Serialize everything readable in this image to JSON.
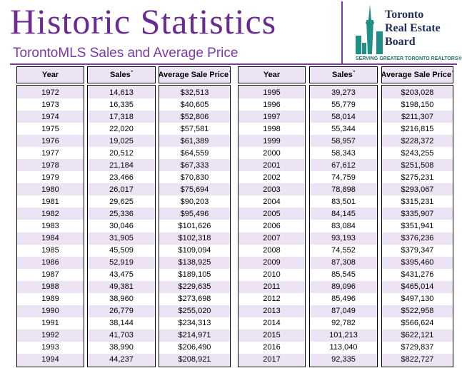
{
  "header": {
    "title": "Historic Statistics",
    "subtitle": "TorontoMLS Sales and Average Price"
  },
  "logo": {
    "lines": [
      "Toronto",
      "Real Estate",
      "Board"
    ],
    "tagline": "SERVING GREATER TORONTO REALTORS®"
  },
  "tables": [
    {
      "columns": [
        {
          "label": "Year"
        },
        {
          "label": "Sales",
          "note": "*"
        },
        {
          "label": "Average Sale Price",
          "note": "*"
        }
      ],
      "rows": [
        [
          "1972",
          "14,613",
          "$32,513"
        ],
        [
          "1973",
          "16,335",
          "$40,605"
        ],
        [
          "1974",
          "17,318",
          "$52,806"
        ],
        [
          "1975",
          "22,020",
          "$57,581"
        ],
        [
          "1976",
          "19,025",
          "$61,389"
        ],
        [
          "1977",
          "20,512",
          "$64,559"
        ],
        [
          "1978",
          "21,184",
          "$67,333"
        ],
        [
          "1979",
          "23,466",
          "$70,830"
        ],
        [
          "1980",
          "26,017",
          "$75,694"
        ],
        [
          "1981",
          "29,625",
          "$90,203"
        ],
        [
          "1982",
          "25,336",
          "$95,496"
        ],
        [
          "1983",
          "30,046",
          "$101,626"
        ],
        [
          "1984",
          "31,905",
          "$102,318"
        ],
        [
          "1985",
          "45,509",
          "$109,094"
        ],
        [
          "1986",
          "52,919",
          "$138,925"
        ],
        [
          "1987",
          "43,475",
          "$189,105"
        ],
        [
          "1988",
          "49,381",
          "$229,635"
        ],
        [
          "1989",
          "38,960",
          "$273,698"
        ],
        [
          "1990",
          "26,779",
          "$255,020"
        ],
        [
          "1991",
          "38,144",
          "$234,313"
        ],
        [
          "1992",
          "41,703",
          "$214,971"
        ],
        [
          "1993",
          "38,990",
          "$206,490"
        ],
        [
          "1994",
          "44,237",
          "$208,921"
        ]
      ]
    },
    {
      "columns": [
        {
          "label": "Year"
        },
        {
          "label": "Sales",
          "note": "*"
        },
        {
          "label": "Average Sale Price",
          "note": "*"
        }
      ],
      "rows": [
        [
          "1995",
          "39,273",
          "$203,028"
        ],
        [
          "1996",
          "55,779",
          "$198,150"
        ],
        [
          "1997",
          "58,014",
          "$211,307"
        ],
        [
          "1998",
          "55,344",
          "$216,815"
        ],
        [
          "1999",
          "58,957",
          "$228,372"
        ],
        [
          "2000",
          "58,343",
          "$243,255"
        ],
        [
          "2001",
          "67,612",
          "$251,508"
        ],
        [
          "2002",
          "74,759",
          "$275,231"
        ],
        [
          "2003",
          "78,898",
          "$293,067"
        ],
        [
          "2004",
          "83,501",
          "$315,231"
        ],
        [
          "2005",
          "84,145",
          "$335,907"
        ],
        [
          "2006",
          "83,084",
          "$351,941"
        ],
        [
          "2007",
          "93,193",
          "$376,236"
        ],
        [
          "2008",
          "74,552",
          "$379,347"
        ],
        [
          "2009",
          "87,308",
          "$395,460"
        ],
        [
          "2010",
          "85,545",
          "$431,276"
        ],
        [
          "2011",
          "89,096",
          "$465,014"
        ],
        [
          "2012",
          "85,496",
          "$497,130"
        ],
        [
          "2013",
          "87,049",
          "$522,958"
        ],
        [
          "2014",
          "92,782",
          "$566,624"
        ],
        [
          "2015",
          "101,213",
          "$622,121"
        ],
        [
          "2016",
          "113,040",
          "$729,837"
        ],
        [
          "2017",
          "92,335",
          "$822,727"
        ]
      ]
    }
  ]
}
